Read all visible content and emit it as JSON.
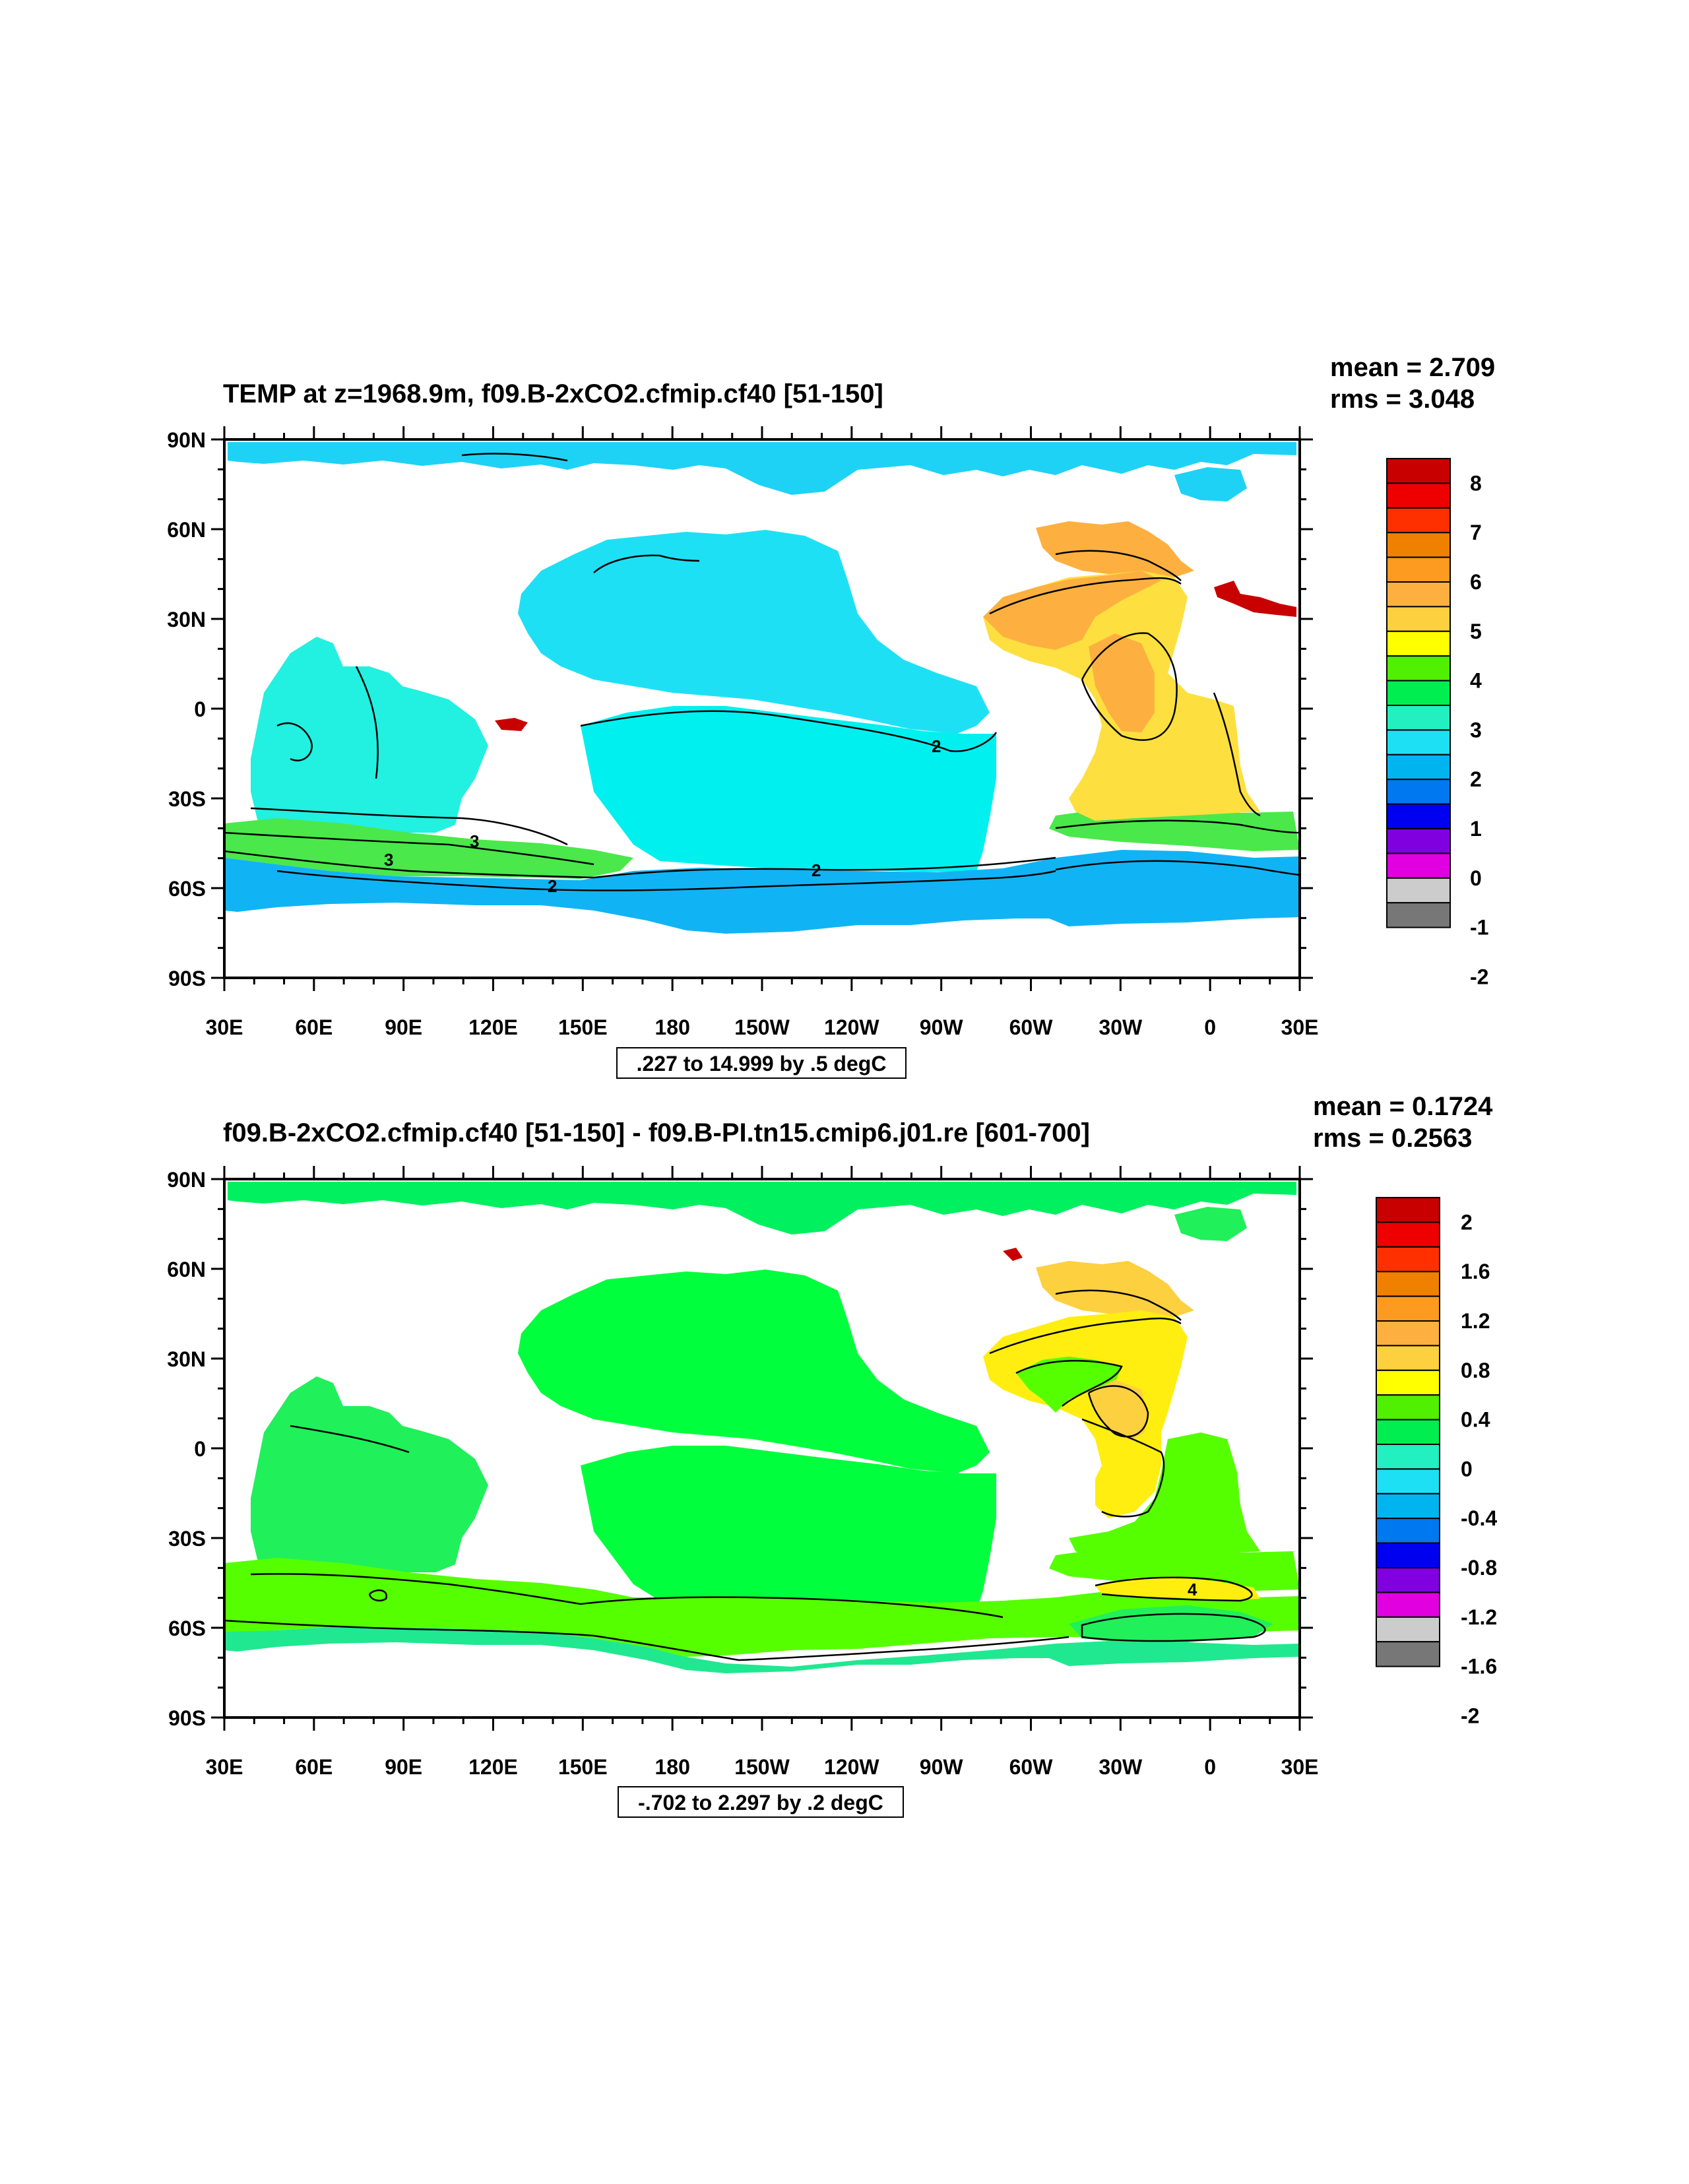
{
  "panels": [
    {
      "id": "top",
      "title": "TEMP at z=1968.9m, f09.B-2xCO2.cfmip.cf40 [51-150]",
      "mean_text": "mean = 2.709",
      "rms_text": "rms = 3.048",
      "range_text": ".227 to 14.999 by .5 degC",
      "colorbar_labels": [
        "8",
        "7",
        "6",
        "5",
        "4",
        "3",
        "2",
        "1",
        "0",
        "-1",
        "-2"
      ],
      "contour_labels": [
        "2",
        "3",
        "3",
        "2",
        "2"
      ],
      "colors": {
        "north_pacific": "#1ee0f5",
        "south_pacific": "#00f0f0",
        "indian": "#22f0e0",
        "southern_green": "#4ae84a",
        "southern_deep": "#10b4f4",
        "atlantic_orange": "#fdb040",
        "atlantic_yellow": "#fde040",
        "arctic": "#1ed2f5"
      }
    },
    {
      "id": "bottom",
      "title": "f09.B-2xCO2.cfmip.cf40 [51-150] - f09.B-PI.tn15.cmip6.j01.re [601-700]",
      "mean_text": "mean = 0.1724",
      "rms_text": "rms = 0.2563",
      "range_text": "-.702 to 2.297 by .2 degC",
      "colorbar_labels": [
        "2",
        "1.6",
        "1.2",
        "0.8",
        "0.4",
        "0",
        "-0.4",
        "-0.8",
        "-1.2",
        "-1.6",
        "-2"
      ],
      "contour_labels": [
        "4"
      ],
      "colors": {
        "north_pacific": "#00ff3c",
        "south_pacific": "#00ff3c",
        "indian": "#20f05a",
        "southern_green": "#56ff00",
        "southern_deep": "#20e890",
        "atlantic_orange": "#fdd040",
        "atlantic_yellow": "#ffee10",
        "arctic": "#00f060"
      }
    }
  ],
  "colorbar_colors": [
    "#c80000",
    "#ee0000",
    "#ff3000",
    "#f08000",
    "#fd9a20",
    "#fdb040",
    "#fdd040",
    "#ffff00",
    "#50f000",
    "#00ee50",
    "#22f0c0",
    "#1ee0f5",
    "#00b4f0",
    "#0078f0",
    "#0000f0",
    "#8000e0",
    "#e000e0",
    "#cccccc",
    "#777777"
  ],
  "lat_labels": [
    "90N",
    "60N",
    "30N",
    "0",
    "30S",
    "60S",
    "90S"
  ],
  "lon_labels": [
    "30E",
    "60E",
    "90E",
    "120E",
    "150E",
    "180",
    "150W",
    "120W",
    "90W",
    "60W",
    "30W",
    "0",
    "30E"
  ]
}
